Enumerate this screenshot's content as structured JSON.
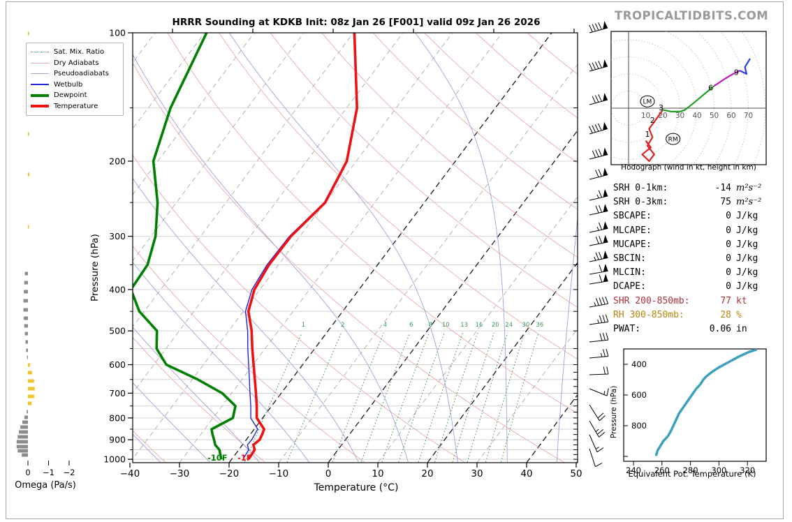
{
  "header": {
    "title": "HRRR Sounding at KDKB Init: 08z Jan 26 [F001] valid 09z Jan 26 2026",
    "logo": "TROPICALTIDBITS.COM"
  },
  "colors": {
    "temperature": "#ee1111",
    "dewpoint": "#008000",
    "wetbulb": "#2424d6",
    "dry_adiabat": "#e8aaaa",
    "pseudoadiabat": "#a0a0da",
    "mixing_ratio": "#3b9b5a",
    "isotherm": "#ababab",
    "isotherm_dark": "#1a1a1a",
    "gridline": "#d4d4d4",
    "omega_positive": "#8c8c8c",
    "omega_negative": "#f2c42c",
    "theta_e_curve": "#3da0bc",
    "hodo_0_3km": "#dd2222",
    "hodo_3_6km": "#1f9e1f",
    "hodo_6_9km": "#bf1fbf",
    "hodo_9_12km": "#2740e0",
    "logo_gray": "#9a9a9a",
    "shr_text": "#b03038",
    "rh_text": "#b8860b"
  },
  "skewt": {
    "xlabel": "Temperature (°C)",
    "ylabel": "Pressure (hPa)",
    "x_tick_labels": [
      "−40",
      "−30",
      "−20",
      "−10",
      "0",
      "10",
      "20",
      "30",
      "40",
      "50"
    ],
    "x_tick_values": [
      -40,
      -30,
      -20,
      -10,
      0,
      10,
      20,
      30,
      40,
      50
    ],
    "y_tick_values": [
      100,
      200,
      300,
      400,
      500,
      600,
      700,
      800,
      900,
      1000
    ],
    "top_ticks": [
      247,
      362,
      477,
      592,
      707,
      822
    ],
    "surface_temp_label": "-1F",
    "surface_dewp_label": "-10F",
    "mixing_ratio_values": [
      1,
      2,
      4,
      6,
      8,
      10,
      13,
      16,
      20,
      24,
      30,
      36
    ],
    "isotherms_dark": [
      -20,
      0,
      20,
      40
    ],
    "legend": [
      {
        "label": "Sat. Mix. Ratio",
        "swatch": "dotted-green"
      },
      {
        "label": "Dry Adiabats",
        "swatch": "thin-salmon"
      },
      {
        "label": "Pseudoadiabats",
        "swatch": "thin-lavender"
      },
      {
        "label": "Wetbulb",
        "swatch": "thin-blue"
      },
      {
        "label": "Dewpoint",
        "swatch": "thick-green"
      },
      {
        "label": "Temperature",
        "swatch": "thick-red"
      }
    ]
  },
  "stats": {
    "rows": [
      {
        "label": "SRH 0-1km:",
        "value": "-14",
        "unit": "m²s⁻²",
        "color": "#000000",
        "italic_unit": true
      },
      {
        "label": "SRH 0-3km:",
        "value": "75",
        "unit": "m²s⁻²",
        "color": "#000000",
        "italic_unit": true
      },
      {
        "label": "SBCAPE:",
        "value": "0",
        "unit": "J/kg",
        "color": "#000000",
        "italic_unit": false
      },
      {
        "label": "MLCAPE:",
        "value": "0",
        "unit": "J/kg",
        "color": "#000000",
        "italic_unit": false
      },
      {
        "label": "MUCAPE:",
        "value": "0",
        "unit": "J/kg",
        "color": "#000000",
        "italic_unit": false
      },
      {
        "label": "SBCIN:",
        "value": "0",
        "unit": "J/kg",
        "color": "#000000",
        "italic_unit": false
      },
      {
        "label": "MLCIN:",
        "value": "0",
        "unit": "J/kg",
        "color": "#000000",
        "italic_unit": false
      },
      {
        "label": "DCAPE:",
        "value": "0",
        "unit": "J/kg",
        "color": "#000000",
        "italic_unit": false
      },
      {
        "label": "SHR 200-850mb:",
        "value": "77",
        "unit": "kt",
        "color": "#b03038",
        "italic_unit": false
      },
      {
        "label": "RH 300-850mb:",
        "value": "28",
        "unit": "%",
        "color": "#b8860b",
        "italic_unit": false
      },
      {
        "label": "PWAT:",
        "value": "0.06",
        "unit": "in",
        "color": "#000000",
        "italic_unit": false
      }
    ]
  },
  "chart_data": {
    "sounding": {
      "type": "line",
      "title": "HRRR Sounding at KDKB Init: 08z Jan 26 [F001] valid 09z Jan 26 2026",
      "xlabel": "Temperature (°C)",
      "ylabel": "Pressure (hPa)",
      "xlim": [
        -40,
        50
      ],
      "ylim": [
        1050,
        100
      ],
      "surface_temp_F": -1,
      "surface_dewpoint_F": -10,
      "pressure_hPa": [
        100,
        150,
        200,
        250,
        300,
        350,
        400,
        450,
        500,
        550,
        600,
        650,
        700,
        750,
        800,
        850,
        875,
        900,
        925,
        950,
        1000
      ],
      "temperature_C": [
        -59.8,
        -47.9,
        -41.9,
        -40.0,
        -41.8,
        -41.9,
        -41.1,
        -39.0,
        -35.4,
        -32.6,
        -29.9,
        -27.4,
        -25.1,
        -23.0,
        -21.2,
        -18.0,
        -17.6,
        -17.3,
        -17.8,
        -16.8,
        -16.6
      ],
      "dewpoint_C": [
        -89.6,
        -85.5,
        -80.9,
        -73.8,
        -69.1,
        -66.4,
        -66.0,
        -61.0,
        -54.5,
        -51.9,
        -47.5,
        -38.9,
        -31.9,
        -27.3,
        -26.0,
        -28.6,
        -27.6,
        -26.5,
        -25.5,
        -23.9,
        -22.1
      ],
      "wetbulb_C": [
        -59.8,
        -47.9,
        -42.0,
        -40.2,
        -42.1,
        -42.3,
        -41.6,
        -39.6,
        -36.2,
        -33.5,
        -30.9,
        -28.5,
        -26.3,
        -24.2,
        -22.4,
        -19.3,
        -19.1,
        -18.9,
        -19.0,
        -18.0,
        -17.7
      ]
    },
    "wind_barbs": [
      [
        47,
        1,
        4,
        0,
        -15
      ],
      [
        102,
        1,
        4,
        0,
        -15
      ],
      [
        150,
        1,
        3,
        0,
        -15
      ],
      [
        192,
        1,
        4,
        0,
        -16
      ],
      [
        228,
        1,
        3,
        0,
        -14
      ],
      [
        257,
        1,
        2,
        0,
        -14
      ],
      [
        287,
        1,
        1,
        1,
        -13
      ],
      [
        308,
        1,
        2,
        0,
        -12
      ],
      [
        333,
        1,
        1,
        1,
        -12
      ],
      [
        352,
        1,
        2,
        0,
        -11
      ],
      [
        375,
        1,
        2,
        1,
        -12
      ],
      [
        393,
        1,
        1,
        0,
        -10
      ],
      [
        407,
        1,
        1,
        0,
        -9
      ],
      [
        440,
        0,
        4,
        1,
        -10
      ],
      [
        465,
        0,
        3,
        1,
        -8
      ],
      [
        490,
        0,
        3,
        0,
        -6
      ],
      [
        513,
        0,
        2,
        1,
        -5
      ],
      [
        537,
        0,
        2,
        0,
        -2
      ],
      [
        557,
        0,
        1,
        1,
        22
      ],
      [
        580,
        0,
        2,
        0,
        58
      ],
      [
        603,
        0,
        2,
        1,
        60
      ],
      [
        623,
        0,
        1,
        1,
        66
      ],
      [
        643,
        0,
        1,
        0,
        72
      ]
    ],
    "omega": {
      "type": "bar",
      "xlabel": "Omega (Pa/s)",
      "tick_labels": [
        "0",
        "−1",
        "−2"
      ],
      "tick_values": [
        0,
        -1,
        -2
      ],
      "bars": [
        [
          48,
          -0.06
        ],
        [
          107,
          -0.06
        ],
        [
          143,
          -0.05
        ],
        [
          192,
          -0.06
        ],
        [
          250,
          -0.07
        ],
        [
          325,
          -0.05
        ],
        [
          392,
          0.15
        ],
        [
          405,
          0.18
        ],
        [
          418,
          0.2
        ],
        [
          431,
          0.22
        ],
        [
          444,
          0.22
        ],
        [
          456,
          0.2
        ],
        [
          467,
          0.18
        ],
        [
          478,
          0.15
        ],
        [
          490,
          0.12
        ],
        [
          502,
          0.09
        ],
        [
          512,
          0.04
        ],
        [
          523,
          -0.1
        ],
        [
          534,
          -0.2
        ],
        [
          546,
          -0.3
        ],
        [
          557,
          -0.33
        ],
        [
          568,
          -0.3
        ],
        [
          578,
          -0.18
        ],
        [
          590,
          0.06
        ],
        [
          598,
          0.17
        ],
        [
          605,
          0.27
        ],
        [
          612,
          0.37
        ],
        [
          619,
          0.44
        ],
        [
          626,
          0.5
        ],
        [
          633,
          0.55
        ],
        [
          640,
          0.55
        ],
        [
          646,
          0.5
        ],
        [
          652,
          0.3
        ]
      ]
    },
    "hodograph": {
      "caption": "Hodograph (wind in kt, height in km)",
      "ring_spacing_kt": 10,
      "ring_labels": [
        "10",
        "20",
        "30",
        "40",
        "50",
        "60",
        "70"
      ],
      "segments": {
        "km0_3": [
          [
            10,
            -19
          ],
          [
            13,
            -23
          ],
          [
            8,
            -27
          ],
          [
            12,
            -31
          ],
          [
            15,
            -27
          ],
          [
            11,
            -22
          ],
          [
            14,
            -17
          ],
          [
            12,
            -12
          ],
          [
            15,
            -8
          ],
          [
            20,
            -1
          ]
        ],
        "km3_6": [
          [
            20,
            -1
          ],
          [
            25,
            -2
          ],
          [
            30,
            -2
          ],
          [
            33,
            -1
          ],
          [
            38,
            3
          ],
          [
            44,
            8
          ],
          [
            50,
            13
          ]
        ],
        "km6_9": [
          [
            50,
            13
          ],
          [
            56,
            17
          ],
          [
            61,
            20
          ],
          [
            65,
            22
          ]
        ],
        "km9_12": [
          [
            65,
            22
          ],
          [
            69,
            20
          ],
          [
            68,
            24
          ],
          [
            71,
            29
          ]
        ]
      },
      "height_labels": {
        "1": [
          11,
          -15
        ],
        "2": [
          14,
          -7
        ],
        "3": [
          19,
          0.5
        ],
        "6": [
          48,
          12
        ],
        "9": [
          63,
          21
        ]
      },
      "storm_motion": {
        "LM": [
          11,
          4
        ],
        "RM": [
          26,
          -18
        ]
      }
    },
    "theta_e": {
      "type": "line",
      "xlabel": "Equivalent Pot. Temperature (K)",
      "ylabel": "Pressure (hPa)",
      "x_ticks": [
        240,
        260,
        280,
        300,
        320
      ],
      "y_ticks": [
        400,
        600,
        800
      ],
      "points": [
        [
          305,
          326
        ],
        [
          320,
          321
        ],
        [
          350,
          314
        ],
        [
          380,
          308
        ],
        [
          400,
          304
        ],
        [
          420,
          300
        ],
        [
          450,
          295
        ],
        [
          480,
          291
        ],
        [
          500,
          289
        ],
        [
          530,
          287
        ],
        [
          560,
          284
        ],
        [
          600,
          281
        ],
        [
          640,
          278
        ],
        [
          680,
          275
        ],
        [
          720,
          272
        ],
        [
          760,
          270
        ],
        [
          800,
          268
        ],
        [
          840,
          266
        ],
        [
          870,
          264
        ],
        [
          900,
          261
        ],
        [
          930,
          259
        ],
        [
          960,
          257
        ],
        [
          990,
          256
        ]
      ]
    }
  }
}
